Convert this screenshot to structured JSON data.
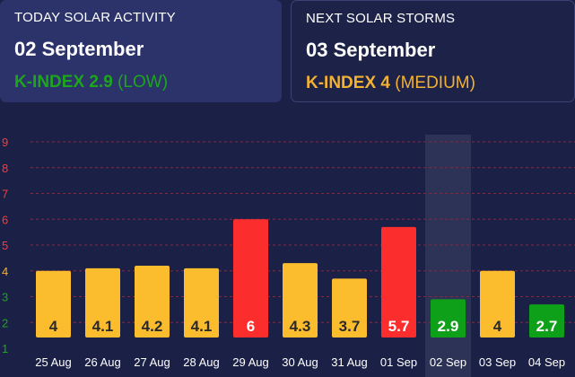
{
  "today_card": {
    "label": "TODAY SOLAR ACTIVITY",
    "date": "02 September",
    "k_index": "K-INDEX 2.9",
    "level": "(LOW)"
  },
  "next_card": {
    "label": "NEXT SOLAR STORMS",
    "date": "03 September",
    "k_index": "K-INDEX 4",
    "level": "(MEDIUM)"
  },
  "colors": {
    "low": "#0fa01a",
    "medium": "#fbbd2e",
    "high": "#fb2d2d",
    "grid": "#7a2e46",
    "highlight": "#33395e"
  },
  "chart_data": {
    "type": "bar",
    "categories": [
      "25 Aug",
      "26 Aug",
      "27 Aug",
      "28 Aug",
      "29 Aug",
      "30 Aug",
      "31 Aug",
      "01 Sep",
      "02 Sep",
      "03 Sep",
      "04 Sep"
    ],
    "values": [
      4,
      4.1,
      4.2,
      4.1,
      6,
      4.3,
      3.7,
      5.7,
      2.9,
      4,
      2.7
    ],
    "value_labels": [
      "4",
      "4.1",
      "4.2",
      "4.1",
      "6",
      "4.3",
      "3.7",
      "5.7",
      "2.9",
      "4",
      "2.7"
    ],
    "bar_levels": [
      "medium",
      "medium",
      "medium",
      "medium",
      "high",
      "medium",
      "medium",
      "high",
      "low",
      "medium",
      "low"
    ],
    "highlighted_category": "02 Sep",
    "y_ticks": [
      {
        "label": "1",
        "color": "#1ea51e"
      },
      {
        "label": "2",
        "color": "#1ea51e"
      },
      {
        "label": "3",
        "color": "#1ea51e"
      },
      {
        "label": "4",
        "color": "#f2b132"
      },
      {
        "label": "5",
        "color": "#fb3b3b"
      },
      {
        "label": "6",
        "color": "#fb3b3b"
      },
      {
        "label": "7",
        "color": "#fb3b3b"
      },
      {
        "label": "8",
        "color": "#fb3b3b"
      },
      {
        "label": "9",
        "color": "#fb3b3b"
      }
    ],
    "ylim": [
      1,
      9
    ],
    "grid": true
  }
}
